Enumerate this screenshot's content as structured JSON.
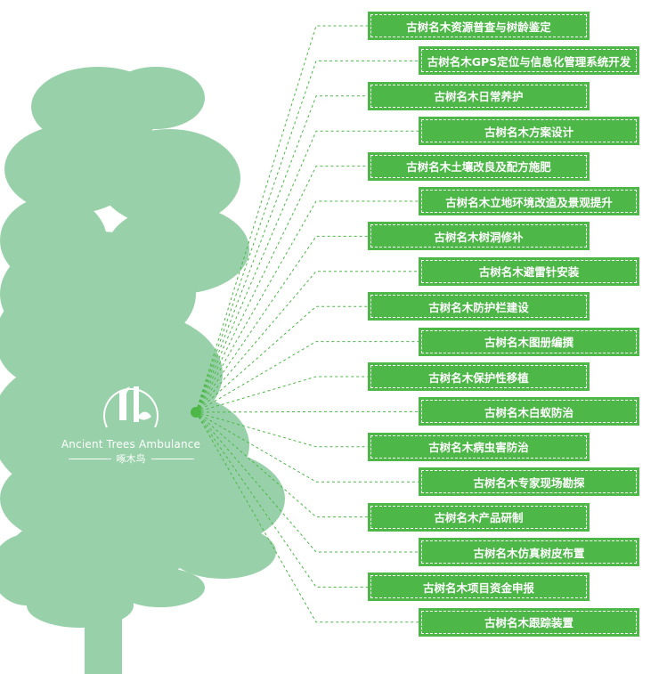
{
  "colors": {
    "tree": "#98d1a9",
    "box": "#4db748",
    "line": "#4db748",
    "text": "#ffffff"
  },
  "logo": {
    "english": "Ancient Trees Ambulance",
    "chinese": "啄木鸟",
    "icon": "woodpecker-on-tree-icon"
  },
  "items": [
    {
      "label": "古树名木资源普查与树龄鉴定",
      "side": "left"
    },
    {
      "label": "古树名木GPS定位与信息化管理系统开发",
      "side": "right"
    },
    {
      "label": "古树名木日常养护",
      "side": "left"
    },
    {
      "label": "古树名木方案设计",
      "side": "right"
    },
    {
      "label": "古树名木土壤改良及配方施肥",
      "side": "left"
    },
    {
      "label": "古树名木立地环境改造及景观提升",
      "side": "right"
    },
    {
      "label": "古树名木树洞修补",
      "side": "left"
    },
    {
      "label": "古树名木避雷针安装",
      "side": "right"
    },
    {
      "label": "古树名木防护栏建设",
      "side": "left"
    },
    {
      "label": "古树名木图册编撰",
      "side": "right"
    },
    {
      "label": "古树名木保护性移植",
      "side": "left"
    },
    {
      "label": "古树名木白蚁防治",
      "side": "right"
    },
    {
      "label": "古树名木病虫害防治",
      "side": "left"
    },
    {
      "label": "古树名木专家现场勘探",
      "side": "right"
    },
    {
      "label": "古树名木产品研制",
      "side": "left"
    },
    {
      "label": "古树名木仿真树皮布置",
      "side": "right"
    },
    {
      "label": "古树名木项目资金申报",
      "side": "left"
    },
    {
      "label": "古树名木跟踪装置",
      "side": "right"
    }
  ]
}
